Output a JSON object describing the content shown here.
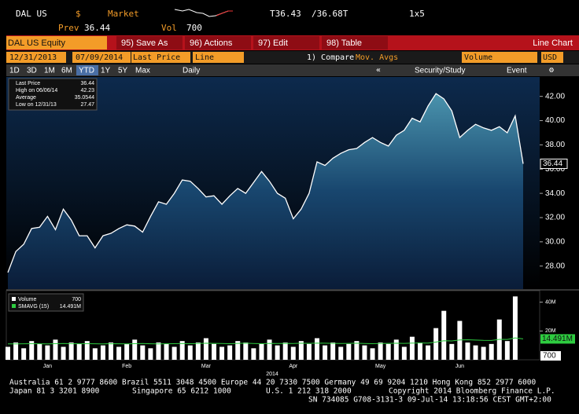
{
  "header": {
    "ticker": "DAL US",
    "currency": "$",
    "market": "Market",
    "bid": "T36.43",
    "ask": "/36.68T",
    "size": "1x5",
    "prev_label": "Prev",
    "prev": "36.44",
    "vol_label": "Vol",
    "vol": "700"
  },
  "toolbar": {
    "security": "DAL US Equity",
    "buttons": [
      "95) Save As",
      "96) Actions",
      "97) Edit",
      "98) Table"
    ],
    "chart_type": "Line Chart"
  },
  "controls": {
    "start": "12/31/2013",
    "end": "07/09/2014",
    "field": "Last Price",
    "style": "Line",
    "compare": "1) Compare",
    "mavgs": "Mov. Avgs",
    "volume": "Volume",
    "currency": "USD"
  },
  "periods": [
    "1D",
    "3D",
    "1M",
    "6M",
    "YTD",
    "1Y",
    "5Y",
    "Max"
  ],
  "selected_period": "YTD",
  "frequency": "Daily",
  "study": "Security/Study",
  "event": "Event",
  "price_legend": [
    [
      "Last Price",
      "36.44"
    ],
    [
      "High on 06/06/14",
      "42.23"
    ],
    [
      "Average",
      "35.0544"
    ],
    [
      "Low on 12/31/13",
      "27.47"
    ]
  ],
  "volume_legend": [
    [
      "Volume",
      "700"
    ],
    [
      "SMAVG (15)",
      "14.491M"
    ]
  ],
  "chart_data": [
    {
      "type": "area",
      "color": "#ffffff",
      "ylim": [
        26.1,
        43.6
      ],
      "yticks": [
        {
          "value": 28,
          "label": "28.00"
        },
        {
          "value": 30,
          "label": "30.00"
        },
        {
          "value": 32,
          "label": "32.00"
        },
        {
          "value": 34,
          "label": "34.00"
        },
        {
          "value": 36,
          "label": "36.00"
        },
        {
          "value": 38,
          "label": "38.00"
        },
        {
          "value": 40,
          "label": "40.00"
        },
        {
          "value": 42,
          "label": "42.00"
        }
      ],
      "categories": [
        null,
        null,
        null,
        null,
        null,
        "Jan",
        null,
        null,
        null,
        null,
        null,
        null,
        null,
        null,
        null,
        "Feb",
        null,
        null,
        null,
        null,
        null,
        null,
        null,
        null,
        null,
        "Mar",
        null,
        null,
        null,
        null,
        null,
        null,
        null,
        null,
        null,
        null,
        "Apr",
        null,
        null,
        null,
        null,
        null,
        null,
        null,
        null,
        null,
        null,
        "May",
        null,
        null,
        null,
        null,
        null,
        null,
        null,
        null,
        null,
        "Jun",
        null,
        null,
        null,
        null,
        null,
        null,
        null,
        null
      ],
      "xlabel": "2014",
      "values": [
        27.47,
        29.2,
        29.8,
        31.1,
        31.2,
        32.1,
        31.0,
        32.7,
        31.8,
        30.5,
        30.5,
        29.5,
        30.5,
        30.7,
        31.1,
        31.4,
        31.3,
        30.8,
        32.1,
        33.3,
        33.1,
        34.0,
        35.1,
        35.0,
        34.4,
        33.7,
        33.8,
        33.1,
        33.8,
        34.4,
        34.0,
        34.9,
        35.8,
        35.0,
        34.0,
        33.6,
        31.9,
        32.7,
        34.0,
        36.6,
        36.3,
        36.9,
        37.3,
        37.6,
        37.7,
        38.2,
        38.6,
        38.2,
        37.9,
        38.8,
        39.2,
        40.2,
        39.9,
        41.2,
        42.23,
        41.8,
        40.8,
        38.6,
        39.2,
        39.7,
        39.4,
        39.2,
        39.5,
        39.0,
        40.4,
        36.44
      ],
      "last_label": "36.44"
    },
    {
      "type": "bar",
      "ylim": [
        0,
        48
      ],
      "yticks": [
        {
          "value": 40,
          "label": "40M"
        },
        {
          "value": 20,
          "label": "20M"
        }
      ],
      "series": [
        {
          "name": "Volume",
          "color": "#ffffff",
          "values": [
            9,
            12,
            8,
            13,
            11,
            10,
            14,
            9,
            12,
            11,
            13,
            8,
            10,
            12,
            9,
            11,
            14,
            10,
            8,
            12,
            11,
            9,
            13,
            10,
            12,
            15,
            11,
            9,
            10,
            13,
            12,
            8,
            11,
            14,
            10,
            12,
            9,
            13,
            11,
            15,
            10,
            12,
            9,
            11,
            13,
            10,
            8,
            12,
            11,
            14,
            9,
            16,
            12,
            10,
            22,
            34,
            11,
            27,
            12,
            10,
            9,
            11,
            28,
            13,
            44,
            0.0007
          ],
          "last_label": "700"
        },
        {
          "name": "SMAVG (15)",
          "color": "#2ecc40",
          "values": [
            11,
            11,
            11.1,
            11.2,
            11.1,
            11,
            11.2,
            11.3,
            11.2,
            11.1,
            11.2,
            11.1,
            11,
            11.2,
            11.1,
            11,
            11.2,
            11.3,
            11.1,
            11,
            11.1,
            11.2,
            11.3,
            11.2,
            11.3,
            11.5,
            11.4,
            11.3,
            11.2,
            11.4,
            11.5,
            11.3,
            11.2,
            11.4,
            11.3,
            11.4,
            11.3,
            11.5,
            11.4,
            11.6,
            11.5,
            11.4,
            11.3,
            11.4,
            11.5,
            11.3,
            11.2,
            11.3,
            11.4,
            11.5,
            11.4,
            11.6,
            11.7,
            11.6,
            12.3,
            13.2,
            13.1,
            13.8,
            13.9,
            13.7,
            13.5,
            13.4,
            14.2,
            14.1,
            15.2,
            14.491
          ],
          "last_label": "14.491M"
        }
      ]
    }
  ],
  "footer": [
    "Australia 61 2 9777 8600 Brazil 5511 3048 4500 Europe 44 20 7330 7500 Germany 49 69 9204 1210 Hong Kong 852 2977 6000",
    "Japan 81 3 3201 8900",
    "Singapore 65 6212 1000",
    "U.S. 1 212 318 2000",
    "Copyright 2014 Bloomberg Finance L.P.",
    "SN 734085 G708-3131-3 09-Jul-14 13:18:56 CEST GMT+2:00"
  ]
}
